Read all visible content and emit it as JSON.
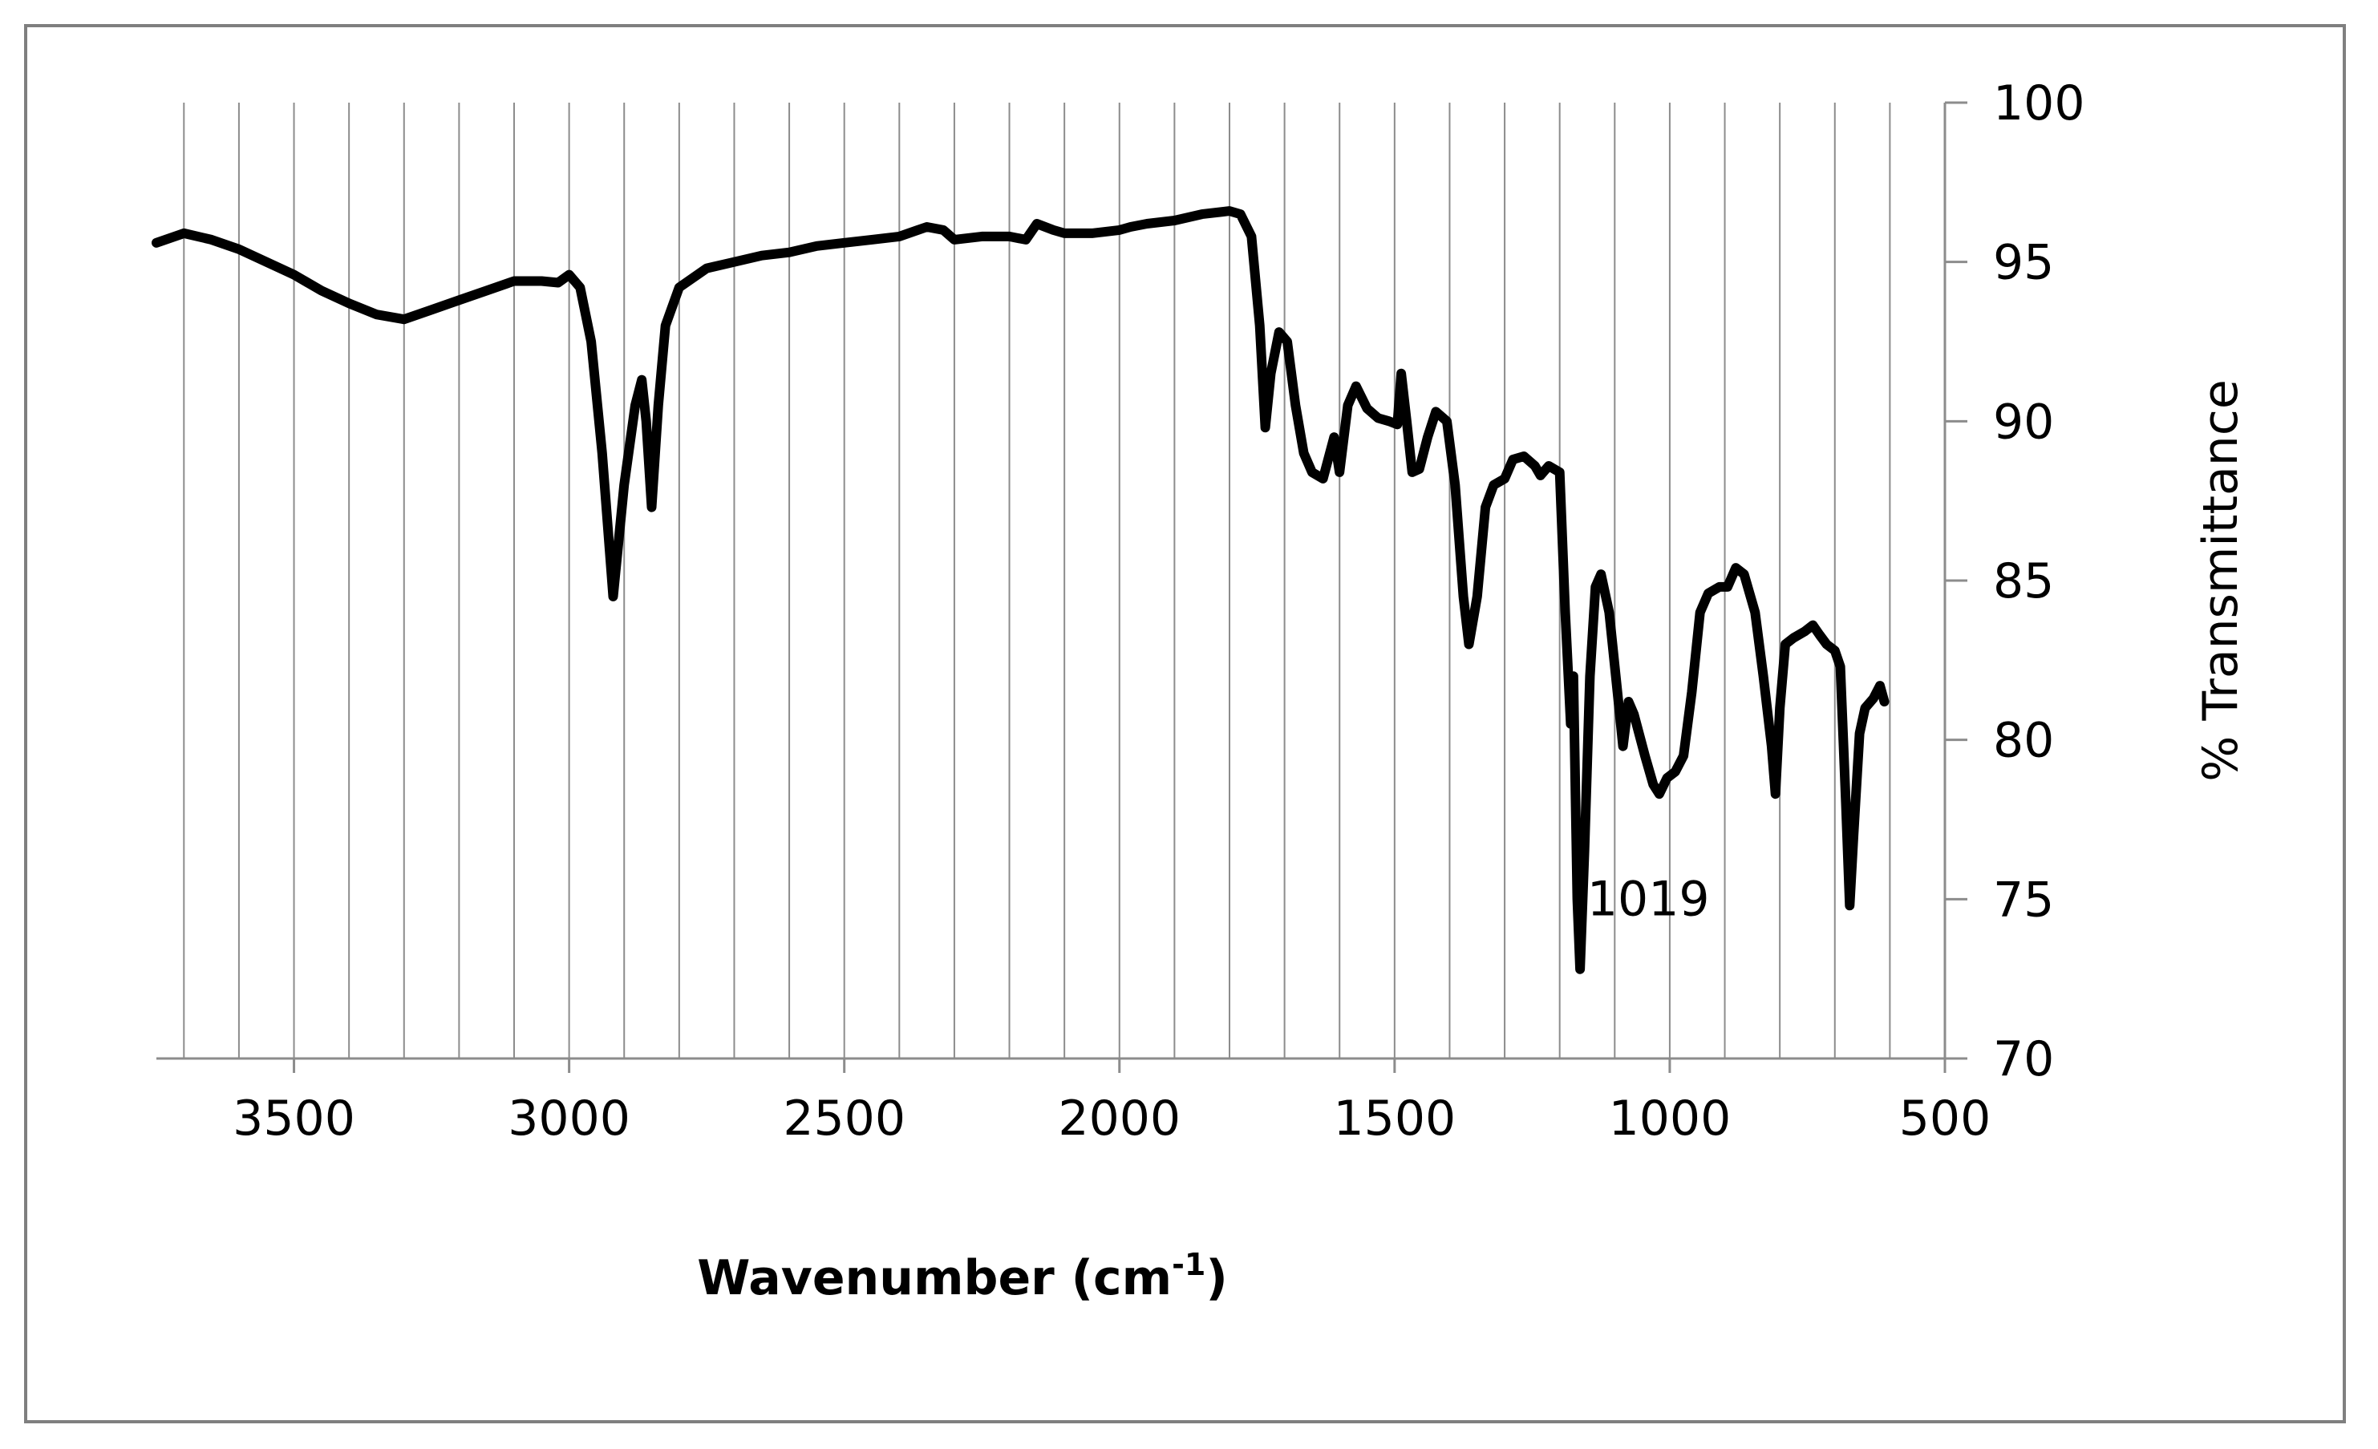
{
  "chart_data": {
    "type": "line",
    "xlabel": "Wavenumber (cm",
    "xlabel_sup": "-1",
    "xlabel_end": ")",
    "ylabel": "% Transmittance",
    "xlim": [
      3750,
      500
    ],
    "ylim": [
      70,
      100
    ],
    "x_reversed": true,
    "y_axis_position": "right",
    "grid": "vertical",
    "x_ticks": [
      3500,
      3000,
      2500,
      2000,
      1500,
      1000,
      500
    ],
    "x_tick_labels": [
      "3500",
      "3000",
      "2500",
      "2000",
      "1500",
      "1000",
      "500"
    ],
    "x_minor_grid_step": 100,
    "y_ticks": [
      70,
      75,
      80,
      85,
      90,
      95,
      100
    ],
    "y_tick_labels": [
      "70",
      "75",
      "80",
      "85",
      "90",
      "95",
      "100"
    ],
    "line_color": "#000000",
    "annotations": [
      {
        "text": "1019",
        "x": 1019,
        "y": 75
      }
    ],
    "series": [
      {
        "points": [
          [
            3750,
            95.6
          ],
          [
            3700,
            95.9
          ],
          [
            3650,
            95.7
          ],
          [
            3600,
            95.4
          ],
          [
            3550,
            95.0
          ],
          [
            3500,
            94.6
          ],
          [
            3450,
            94.1
          ],
          [
            3400,
            93.7
          ],
          [
            3350,
            93.35
          ],
          [
            3300,
            93.2
          ],
          [
            3250,
            93.5
          ],
          [
            3200,
            93.8
          ],
          [
            3150,
            94.1
          ],
          [
            3100,
            94.4
          ],
          [
            3050,
            94.4
          ],
          [
            3020,
            94.35
          ],
          [
            3000,
            94.6
          ],
          [
            2980,
            94.2
          ],
          [
            2960,
            92.5
          ],
          [
            2940,
            89.0
          ],
          [
            2920,
            84.5
          ],
          [
            2900,
            88.0
          ],
          [
            2880,
            90.5
          ],
          [
            2868,
            91.3
          ],
          [
            2860,
            90.0
          ],
          [
            2850,
            87.3
          ],
          [
            2838,
            90.5
          ],
          [
            2825,
            93.0
          ],
          [
            2800,
            94.2
          ],
          [
            2750,
            94.8
          ],
          [
            2700,
            95.0
          ],
          [
            2650,
            95.2
          ],
          [
            2600,
            95.3
          ],
          [
            2550,
            95.5
          ],
          [
            2500,
            95.6
          ],
          [
            2450,
            95.7
          ],
          [
            2400,
            95.8
          ],
          [
            2350,
            96.1
          ],
          [
            2320,
            96.0
          ],
          [
            2300,
            95.7
          ],
          [
            2250,
            95.8
          ],
          [
            2200,
            95.8
          ],
          [
            2170,
            95.7
          ],
          [
            2150,
            96.2
          ],
          [
            2120,
            96.0
          ],
          [
            2100,
            95.9
          ],
          [
            2050,
            95.9
          ],
          [
            2000,
            96.0
          ],
          [
            1980,
            96.1
          ],
          [
            1950,
            96.2
          ],
          [
            1900,
            96.3
          ],
          [
            1850,
            96.5
          ],
          [
            1800,
            96.6
          ],
          [
            1780,
            96.5
          ],
          [
            1760,
            95.8
          ],
          [
            1745,
            93.0
          ],
          [
            1735,
            89.8
          ],
          [
            1725,
            91.5
          ],
          [
            1710,
            92.8
          ],
          [
            1695,
            92.5
          ],
          [
            1680,
            90.5
          ],
          [
            1665,
            89.0
          ],
          [
            1650,
            88.4
          ],
          [
            1630,
            88.2
          ],
          [
            1610,
            89.5
          ],
          [
            1600,
            88.4
          ],
          [
            1585,
            90.5
          ],
          [
            1570,
            91.1
          ],
          [
            1550,
            90.4
          ],
          [
            1530,
            90.1
          ],
          [
            1510,
            90.0
          ],
          [
            1495,
            89.9
          ],
          [
            1488,
            91.5
          ],
          [
            1478,
            90.0
          ],
          [
            1468,
            88.4
          ],
          [
            1455,
            88.5
          ],
          [
            1440,
            89.5
          ],
          [
            1425,
            90.3
          ],
          [
            1405,
            90.0
          ],
          [
            1390,
            88.0
          ],
          [
            1375,
            84.5
          ],
          [
            1365,
            83.0
          ],
          [
            1350,
            84.5
          ],
          [
            1335,
            87.3
          ],
          [
            1320,
            88.0
          ],
          [
            1300,
            88.2
          ],
          [
            1285,
            88.8
          ],
          [
            1265,
            88.9
          ],
          [
            1245,
            88.6
          ],
          [
            1235,
            88.3
          ],
          [
            1220,
            88.6
          ],
          [
            1200,
            88.4
          ],
          [
            1190,
            84.0
          ],
          [
            1180,
            80.5
          ],
          [
            1175,
            82.0
          ],
          [
            1168,
            75.0
          ],
          [
            1163,
            72.8
          ],
          [
            1155,
            76.5
          ],
          [
            1145,
            82.0
          ],
          [
            1135,
            84.8
          ],
          [
            1125,
            85.2
          ],
          [
            1110,
            84.0
          ],
          [
            1095,
            81.5
          ],
          [
            1085,
            79.8
          ],
          [
            1075,
            81.2
          ],
          [
            1065,
            80.8
          ],
          [
            1045,
            79.5
          ],
          [
            1030,
            78.6
          ],
          [
            1019,
            78.3
          ],
          [
            1005,
            78.8
          ],
          [
            990,
            79.0
          ],
          [
            975,
            79.5
          ],
          [
            960,
            81.5
          ],
          [
            945,
            84.0
          ],
          [
            930,
            84.6
          ],
          [
            910,
            84.8
          ],
          [
            895,
            84.8
          ],
          [
            880,
            85.4
          ],
          [
            865,
            85.2
          ],
          [
            845,
            84.0
          ],
          [
            830,
            82.0
          ],
          [
            815,
            79.8
          ],
          [
            808,
            78.3
          ],
          [
            800,
            81.0
          ],
          [
            790,
            83.0
          ],
          [
            775,
            83.2
          ],
          [
            755,
            83.4
          ],
          [
            740,
            83.6
          ],
          [
            728,
            83.3
          ],
          [
            715,
            83.0
          ],
          [
            700,
            82.8
          ],
          [
            690,
            82.3
          ],
          [
            680,
            78.0
          ],
          [
            673,
            74.8
          ],
          [
            666,
            77.0
          ],
          [
            655,
            80.2
          ],
          [
            645,
            81.0
          ],
          [
            630,
            81.3
          ],
          [
            618,
            81.7
          ],
          [
            610,
            81.2
          ]
        ]
      }
    ]
  }
}
